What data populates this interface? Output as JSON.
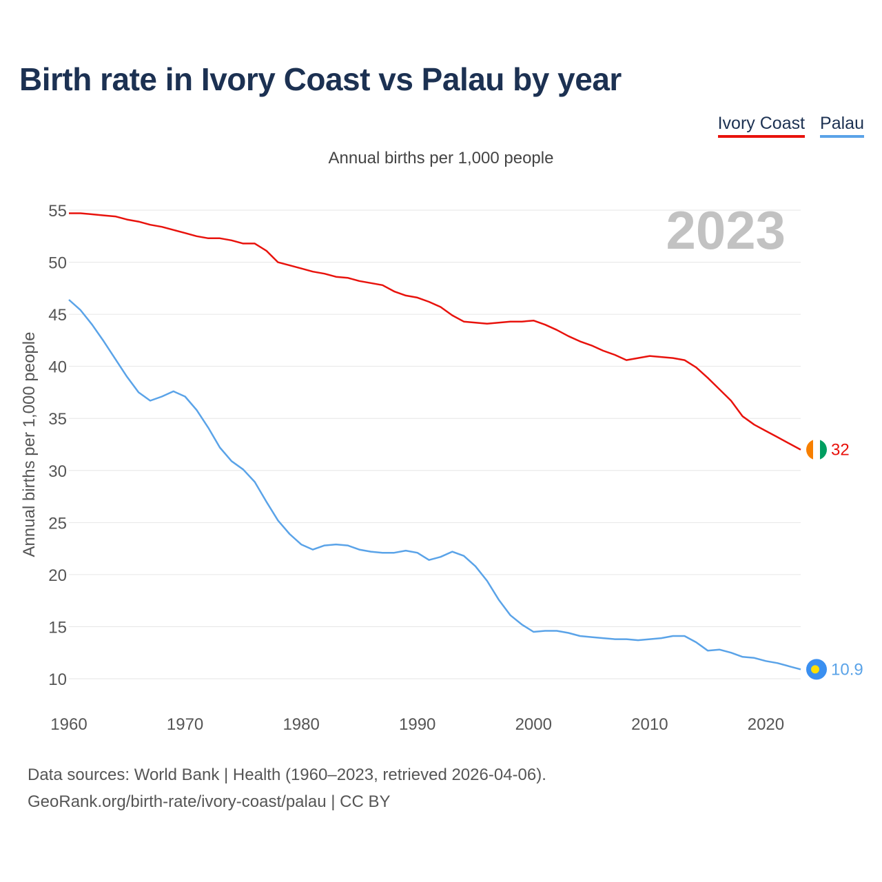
{
  "title": "Birth rate in Ivory Coast vs Palau by year",
  "subtitle": "Annual births per 1,000 people",
  "legend": [
    {
      "label": "Ivory Coast",
      "color": "#e8120c"
    },
    {
      "label": "Palau",
      "color": "#5aa3e8"
    }
  ],
  "footer": {
    "line1": "Data sources: World Bank | Health (1960–2023, retrieved 2026-04-06).",
    "line2": "GeoRank.org/birth-rate/ivory-coast/palau | CC BY"
  },
  "chart_data": {
    "type": "line",
    "title": "Birth rate in Ivory Coast vs Palau by year",
    "ylabel": "Annual births per 1,000 people",
    "xlabel": "",
    "xlim": [
      1960,
      2023
    ],
    "ylim": [
      10,
      55
    ],
    "xticks": [
      1960,
      1970,
      1980,
      1990,
      2000,
      2010,
      2020
    ],
    "yticks": [
      10,
      15,
      20,
      25,
      30,
      35,
      40,
      45,
      50,
      55
    ],
    "grid": true,
    "year_label": "2023",
    "x": [
      1960,
      1961,
      1962,
      1963,
      1964,
      1965,
      1966,
      1967,
      1968,
      1969,
      1970,
      1971,
      1972,
      1973,
      1974,
      1975,
      1976,
      1977,
      1978,
      1979,
      1980,
      1981,
      1982,
      1983,
      1984,
      1985,
      1986,
      1987,
      1988,
      1989,
      1990,
      1991,
      1992,
      1993,
      1994,
      1995,
      1996,
      1997,
      1998,
      1999,
      2000,
      2001,
      2002,
      2003,
      2004,
      2005,
      2006,
      2007,
      2008,
      2009,
      2010,
      2011,
      2012,
      2013,
      2014,
      2015,
      2016,
      2017,
      2018,
      2019,
      2020,
      2021,
      2022,
      2023
    ],
    "series": [
      {
        "name": "Ivory Coast",
        "color": "#e8120c",
        "end_label": "32",
        "values": [
          54.7,
          54.7,
          54.6,
          54.5,
          54.4,
          54.1,
          53.9,
          53.6,
          53.4,
          53.1,
          52.8,
          52.5,
          52.3,
          52.3,
          52.1,
          51.8,
          51.8,
          51.1,
          50.0,
          49.7,
          49.4,
          49.1,
          48.9,
          48.6,
          48.5,
          48.2,
          48.0,
          47.8,
          47.2,
          46.8,
          46.6,
          46.2,
          45.7,
          44.9,
          44.3,
          44.2,
          44.1,
          44.2,
          44.3,
          44.3,
          44.4,
          44.0,
          43.5,
          42.9,
          42.4,
          42.0,
          41.5,
          41.1,
          40.6,
          40.8,
          41.0,
          40.9,
          40.8,
          40.6,
          39.9,
          38.9,
          37.8,
          36.7,
          35.2,
          34.4,
          33.8,
          33.2,
          32.6,
          32.0
        ]
      },
      {
        "name": "Palau",
        "color": "#5aa3e8",
        "end_label": "10.9",
        "values": [
          46.4,
          45.4,
          44.0,
          42.4,
          40.7,
          39.0,
          37.5,
          36.7,
          37.1,
          37.6,
          37.1,
          35.8,
          34.1,
          32.2,
          30.9,
          30.1,
          28.9,
          27.0,
          25.2,
          23.9,
          22.9,
          22.4,
          22.8,
          22.9,
          22.8,
          22.4,
          22.2,
          22.1,
          22.1,
          22.3,
          22.1,
          21.4,
          21.7,
          22.2,
          21.8,
          20.8,
          19.4,
          17.6,
          16.1,
          15.2,
          14.5,
          14.6,
          14.6,
          14.4,
          14.1,
          14.0,
          13.9,
          13.8,
          13.8,
          13.7,
          13.8,
          13.9,
          14.1,
          14.1,
          13.5,
          12.7,
          12.8,
          12.5,
          12.1,
          12.0,
          11.7,
          11.5,
          11.2,
          10.9
        ]
      }
    ]
  }
}
